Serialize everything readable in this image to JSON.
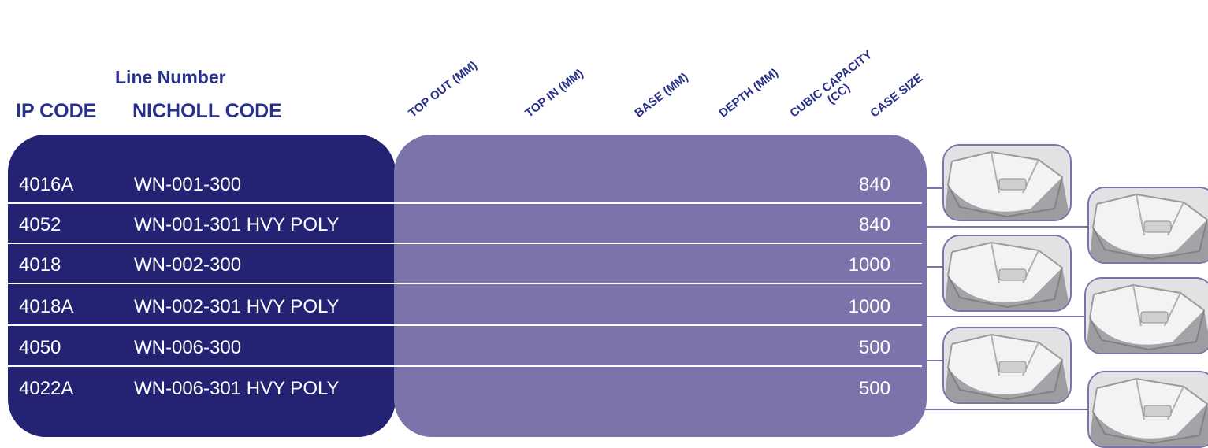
{
  "headers": {
    "line_number": "Line Number",
    "ip_code": "IP CODE",
    "nicholl_code": "NICHOLL CODE"
  },
  "columns": {
    "top_out": "TOP OUT (MM)",
    "top_in": "TOP IN (MM)",
    "base": "BASE (MM)",
    "depth": "DEPTH (MM)",
    "cubic_capacity_1": "CUBIC CAPACITY",
    "cubic_capacity_2": "(CC)",
    "case_size": "CASE SIZE"
  },
  "rows": [
    {
      "ip": "4016A",
      "nicholl": "WN-001-300",
      "cc": "840"
    },
    {
      "ip": "4052",
      "nicholl": "WN-001-301 HVY POLY",
      "cc": "840"
    },
    {
      "ip": "4018",
      "nicholl": "WN-002-300",
      "cc": "1000"
    },
    {
      "ip": "4018A",
      "nicholl": "WN-002-301 HVY POLY",
      "cc": "1000"
    },
    {
      "ip": "4050",
      "nicholl": "WN-006-300",
      "cc": "500"
    },
    {
      "ip": "4022A",
      "nicholl": "WN-006-301 HVY POLY",
      "cc": "500"
    }
  ],
  "colors": {
    "header_text": "#27308a",
    "dark_panel": "#232273",
    "light_panel": "#7a74aa",
    "row_text": "#ffffff"
  },
  "product_images": [
    "product-photo-icon",
    "product-photo-icon",
    "product-photo-icon",
    "product-photo-icon",
    "product-photo-icon",
    "product-photo-icon"
  ]
}
